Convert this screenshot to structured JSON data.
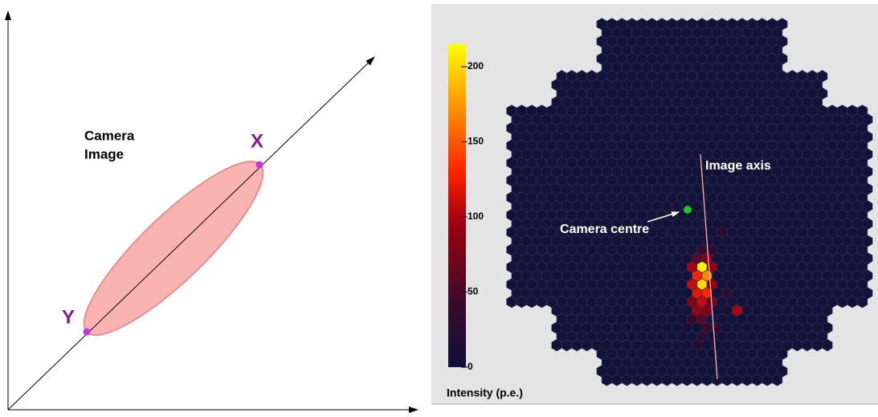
{
  "diagram": {
    "label_line1": "Camera",
    "label_line2": "Image",
    "point_x": "X",
    "point_y": "Y"
  },
  "camera": {
    "colorbar": {
      "lim": [
        0,
        215
      ],
      "ticks": [
        0,
        50,
        100,
        150,
        200
      ],
      "label": "Intensity (p.e.)"
    },
    "annotations": {
      "image_axis": "Image axis",
      "camera_centre": "Camera centre"
    },
    "pixels": [
      {
        "row": 26,
        "col": 19,
        "value": 40
      },
      {
        "row": 26,
        "col": 20,
        "value": 30
      },
      {
        "row": 27,
        "col": 18,
        "value": 60
      },
      {
        "row": 27,
        "col": 19,
        "value": 80
      },
      {
        "row": 28,
        "col": 18,
        "value": 100
      },
      {
        "row": 28,
        "col": 19,
        "value": 210
      },
      {
        "row": 28,
        "col": 20,
        "value": 90
      },
      {
        "row": 29,
        "col": 18,
        "value": 130
      },
      {
        "row": 29,
        "col": 19,
        "value": 170
      },
      {
        "row": 30,
        "col": 18,
        "value": 110
      },
      {
        "row": 30,
        "col": 19,
        "value": 200
      },
      {
        "row": 30,
        "col": 20,
        "value": 90
      },
      {
        "row": 31,
        "col": 18,
        "value": 120
      },
      {
        "row": 31,
        "col": 19,
        "value": 130
      },
      {
        "row": 31,
        "col": 21,
        "value": 30
      },
      {
        "row": 32,
        "col": 18,
        "value": 80
      },
      {
        "row": 32,
        "col": 19,
        "value": 110
      },
      {
        "row": 32,
        "col": 20,
        "value": 70
      },
      {
        "row": 33,
        "col": 18,
        "value": 90
      },
      {
        "row": 33,
        "col": 19,
        "value": 80
      },
      {
        "row": 33,
        "col": 22,
        "value": 100
      },
      {
        "row": 34,
        "col": 18,
        "value": 40
      },
      {
        "row": 34,
        "col": 19,
        "value": 60
      },
      {
        "row": 35,
        "col": 19,
        "value": 40
      },
      {
        "row": 35,
        "col": 20,
        "value": 30
      },
      {
        "row": 36,
        "col": 19,
        "value": 30
      },
      {
        "row": 37,
        "col": 18,
        "value": 25
      },
      {
        "row": 24,
        "col": 21,
        "value": 25
      }
    ]
  }
}
